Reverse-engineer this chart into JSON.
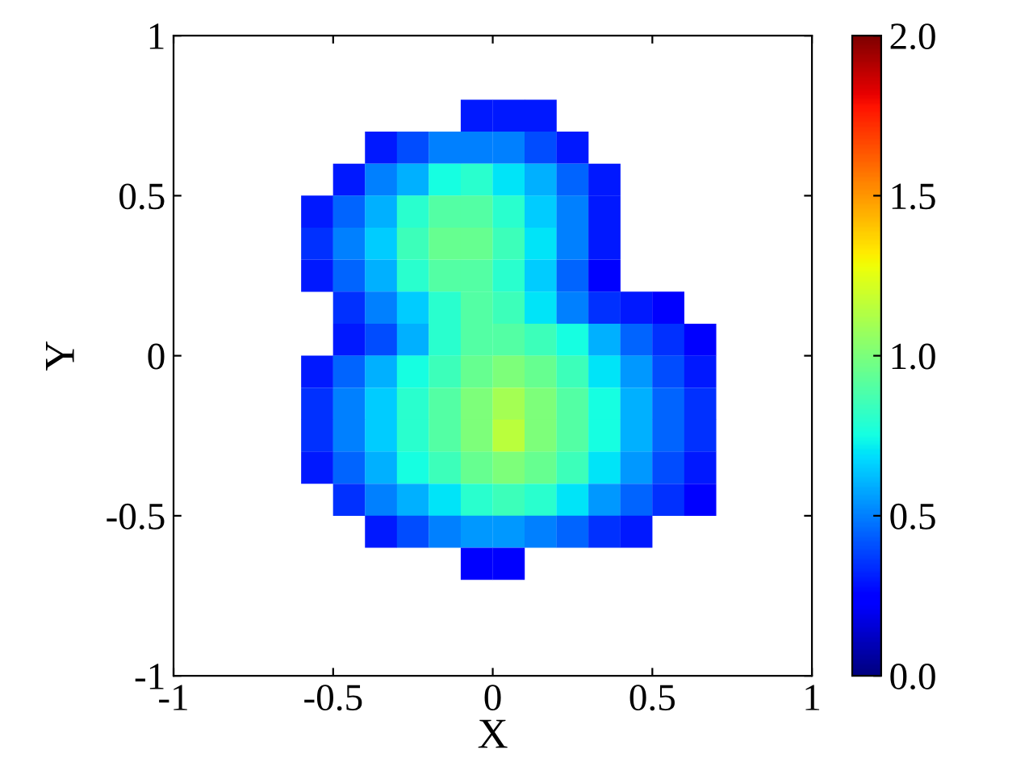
{
  "chart_data": {
    "type": "scatter",
    "xlabel": "X",
    "ylabel": "Y",
    "marker": "square",
    "xlim": [
      -1,
      1
    ],
    "ylim": [
      -1,
      1
    ],
    "xticks": [
      -1,
      -0.5,
      0,
      0.5,
      1
    ],
    "yticks": [
      -1,
      -0.5,
      0,
      0.5,
      1
    ],
    "clim": [
      0,
      2
    ],
    "cticks": [
      {
        "value": 0,
        "label": "0.0"
      },
      {
        "value": 0.5,
        "label": "0.5"
      },
      {
        "value": 1,
        "label": "1.0"
      },
      {
        "value": 1.5,
        "label": "1.5"
      },
      {
        "value": 2,
        "label": "2.0"
      }
    ],
    "x": [
      -0.05,
      0.05,
      0.15,
      -0.35,
      -0.25,
      -0.15,
      -0.05,
      0.05,
      0.15,
      0.25,
      -0.45,
      -0.35,
      -0.25,
      -0.15,
      -0.05,
      0.05,
      0.15,
      0.25,
      0.35,
      -0.55,
      -0.45,
      -0.35,
      -0.25,
      -0.15,
      -0.05,
      0.05,
      0.15,
      0.25,
      0.35,
      -0.55,
      -0.45,
      -0.35,
      -0.25,
      -0.15,
      -0.05,
      0.05,
      0.15,
      0.25,
      0.35,
      -0.55,
      -0.45,
      -0.35,
      -0.25,
      -0.15,
      -0.05,
      0.05,
      0.15,
      0.25,
      0.35,
      -0.45,
      -0.35,
      -0.25,
      -0.15,
      -0.05,
      0.05,
      0.15,
      0.25,
      0.35,
      0.45,
      0.55,
      -0.45,
      -0.35,
      -0.25,
      -0.15,
      -0.05,
      0.05,
      0.15,
      0.25,
      0.35,
      0.45,
      0.55,
      0.65,
      -0.55,
      -0.45,
      -0.35,
      -0.25,
      -0.15,
      -0.05,
      0.05,
      0.15,
      0.25,
      0.35,
      0.45,
      0.55,
      0.65,
      -0.55,
      -0.45,
      -0.35,
      -0.25,
      -0.15,
      -0.05,
      0.05,
      0.15,
      0.25,
      0.35,
      0.45,
      0.55,
      0.65,
      -0.55,
      -0.45,
      -0.35,
      -0.25,
      -0.15,
      -0.05,
      0.05,
      0.15,
      0.25,
      0.35,
      0.45,
      0.55,
      0.65,
      -0.55,
      -0.45,
      -0.35,
      -0.25,
      -0.15,
      -0.05,
      0.05,
      0.15,
      0.25,
      0.35,
      0.45,
      0.55,
      0.65,
      -0.45,
      -0.35,
      -0.25,
      -0.15,
      -0.05,
      0.05,
      0.15,
      0.25,
      0.35,
      0.45,
      0.55,
      0.65,
      -0.35,
      -0.25,
      -0.15,
      -0.05,
      0.05,
      0.15,
      0.25,
      0.35,
      0.45,
      -0.05,
      0.05
    ],
    "values": [
      0.75,
      0.75,
      0.75,
      0.65,
      0.65,
      0.65,
      0.65,
      0.65,
      0.65,
      0.65,
      0.55,
      0.55,
      0.55,
      0.55,
      0.55,
      0.55,
      0.55,
      0.55,
      0.55,
      0.45,
      0.45,
      0.45,
      0.45,
      0.45,
      0.45,
      0.45,
      0.45,
      0.45,
      0.45,
      0.35,
      0.35,
      0.35,
      0.35,
      0.35,
      0.35,
      0.35,
      0.35,
      0.35,
      0.35,
      0.25,
      0.25,
      0.25,
      0.25,
      0.25,
      0.25,
      0.25,
      0.25,
      0.25,
      0.25,
      0.15,
      0.15,
      0.15,
      0.15,
      0.15,
      0.15,
      0.15,
      0.15,
      0.15,
      0.15,
      0.15,
      0.05,
      0.05,
      0.05,
      0.05,
      0.05,
      0.05,
      0.05,
      0.05,
      0.05,
      0.05,
      0.05,
      0.05,
      -0.05,
      -0.05,
      -0.05,
      -0.05,
      -0.05,
      -0.05,
      -0.05,
      -0.05,
      -0.05,
      -0.05,
      -0.05,
      -0.05,
      -0.05,
      -0.15,
      -0.15,
      -0.15,
      -0.15,
      -0.15,
      -0.15,
      -0.15,
      -0.15,
      -0.15,
      -0.15,
      -0.15,
      -0.15,
      -0.15,
      -0.25,
      -0.25,
      -0.25,
      -0.25,
      -0.25,
      -0.25,
      -0.25,
      -0.25,
      -0.25,
      -0.25,
      -0.25,
      -0.25,
      -0.25,
      -0.35,
      -0.35,
      -0.35,
      -0.35,
      -0.35,
      -0.35,
      -0.35,
      -0.35,
      -0.35,
      -0.35,
      -0.35,
      -0.35,
      -0.35,
      -0.45,
      -0.45,
      -0.45,
      -0.45,
      -0.45,
      -0.45,
      -0.45,
      -0.45,
      -0.45,
      -0.45,
      -0.45,
      -0.45,
      -0.55,
      -0.55,
      -0.55,
      -0.55,
      -0.55,
      -0.55,
      -0.55,
      -0.55,
      -0.55,
      -0.65,
      -0.65
    ],
    "cvalues": [
      0.3,
      0.3,
      0.3,
      0.3,
      0.4,
      0.5,
      0.5,
      0.5,
      0.4,
      0.3,
      0.3,
      0.5,
      0.6,
      0.75,
      0.8,
      0.7,
      0.6,
      0.45,
      0.3,
      0.3,
      0.45,
      0.6,
      0.8,
      0.9,
      0.9,
      0.8,
      0.65,
      0.5,
      0.3,
      0.35,
      0.5,
      0.65,
      0.85,
      0.95,
      0.95,
      0.85,
      0.7,
      0.5,
      0.3,
      0.3,
      0.45,
      0.6,
      0.8,
      0.9,
      0.9,
      0.8,
      0.65,
      0.45,
      0.25,
      0.35,
      0.5,
      0.65,
      0.8,
      0.9,
      0.85,
      0.7,
      0.5,
      0.35,
      0.3,
      0.25,
      0.3,
      0.4,
      0.6,
      0.8,
      0.9,
      0.9,
      0.85,
      0.75,
      0.6,
      0.45,
      0.35,
      0.25,
      0.3,
      0.45,
      0.6,
      0.75,
      0.85,
      0.95,
      1.0,
      0.95,
      0.85,
      0.7,
      0.55,
      0.4,
      0.3,
      0.35,
      0.5,
      0.65,
      0.8,
      0.9,
      1.0,
      1.1,
      1.0,
      0.9,
      0.75,
      0.6,
      0.45,
      0.35,
      0.35,
      0.5,
      0.65,
      0.8,
      0.9,
      1.0,
      1.15,
      1.0,
      0.9,
      0.75,
      0.6,
      0.45,
      0.35,
      0.3,
      0.45,
      0.6,
      0.75,
      0.85,
      0.95,
      1.0,
      0.95,
      0.85,
      0.7,
      0.55,
      0.4,
      0.3,
      0.35,
      0.5,
      0.6,
      0.7,
      0.8,
      0.85,
      0.8,
      0.7,
      0.55,
      0.45,
      0.35,
      0.25,
      0.3,
      0.4,
      0.5,
      0.55,
      0.55,
      0.5,
      0.45,
      0.35,
      0.3,
      0.25,
      0.25
    ]
  }
}
